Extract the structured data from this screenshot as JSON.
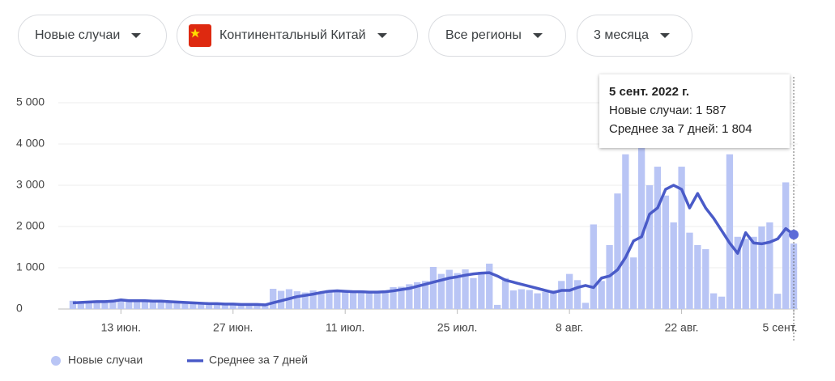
{
  "filters": [
    "Новые случаи",
    "Континентальный Китай",
    "Все регионы",
    "3 месяца"
  ],
  "chart_data": {
    "type": "bar-line",
    "categories": [
      null,
      null,
      null,
      null,
      null,
      null,
      "13 июн.",
      null,
      null,
      null,
      null,
      null,
      null,
      null,
      null,
      null,
      null,
      null,
      null,
      null,
      "27 июн.",
      null,
      null,
      null,
      null,
      null,
      null,
      null,
      null,
      null,
      null,
      null,
      null,
      null,
      "11 июл.",
      null,
      null,
      null,
      null,
      null,
      null,
      null,
      null,
      null,
      null,
      null,
      null,
      null,
      "25 июл.",
      null,
      null,
      null,
      null,
      null,
      null,
      null,
      null,
      null,
      null,
      null,
      null,
      null,
      "8 авг.",
      null,
      null,
      null,
      null,
      null,
      null,
      null,
      null,
      null,
      null,
      null,
      null,
      null,
      "22 авг.",
      null,
      null,
      null,
      null,
      null,
      null,
      null,
      null,
      null,
      null,
      null,
      null,
      null,
      "5 сент."
    ],
    "series": [
      {
        "name": "Новые случаи",
        "color": "#b9c5f5",
        "values": [
          200,
          180,
          190,
          200,
          210,
          200,
          230,
          220,
          210,
          200,
          190,
          180,
          170,
          180,
          160,
          150,
          140,
          130,
          120,
          120,
          110,
          100,
          100,
          110,
          90,
          490,
          440,
          480,
          430,
          400,
          450,
          420,
          460,
          440,
          430,
          420,
          410,
          400,
          430,
          420,
          530,
          540,
          600,
          650,
          680,
          1020,
          850,
          950,
          870,
          960,
          750,
          900,
          1100,
          100,
          750,
          450,
          480,
          460,
          380,
          420,
          450,
          680,
          850,
          700,
          150,
          2050,
          680,
          1550,
          2800,
          3750,
          1250,
          3900,
          3000,
          3450,
          2750,
          2100,
          3450,
          1850,
          1550,
          1450,
          380,
          300,
          3750,
          1750,
          1700,
          1750,
          2000,
          2100,
          370,
          3070,
          1587
        ]
      },
      {
        "name": "Среднее за 7 дней",
        "color": "#4a5bc8",
        "values": [
          150,
          160,
          170,
          180,
          180,
          190,
          220,
          200,
          200,
          200,
          190,
          190,
          180,
          170,
          160,
          150,
          140,
          130,
          130,
          120,
          120,
          110,
          110,
          110,
          100,
          150,
          200,
          250,
          300,
          330,
          360,
          400,
          430,
          440,
          430,
          420,
          420,
          410,
          410,
          420,
          440,
          470,
          500,
          550,
          600,
          650,
          700,
          750,
          780,
          820,
          850,
          870,
          880,
          800,
          700,
          650,
          600,
          550,
          500,
          450,
          400,
          450,
          450,
          520,
          570,
          520,
          750,
          800,
          950,
          1250,
          1650,
          1750,
          2300,
          2450,
          2900,
          3000,
          2900,
          2450,
          2800,
          2450,
          2200,
          1900,
          1600,
          1350,
          1850,
          1600,
          1580,
          1620,
          1700,
          1950,
          1804
        ]
      }
    ],
    "ylim": [
      0,
      5000
    ],
    "yticks": [
      0,
      {
        "value": 1000,
        "label": "1 000"
      },
      {
        "value": 2000,
        "label": "2 000"
      },
      {
        "value": 3000,
        "label": "3 000"
      },
      {
        "value": 4000,
        "label": "4 000"
      },
      {
        "value": 5000,
        "label": "5 000"
      }
    ],
    "grid": true,
    "tooltip": {
      "title": "5 сент. 2022 г.",
      "lines": [
        "Новые случаи: 1 587",
        "Среднее за 7 дней: 1 804"
      ]
    }
  }
}
